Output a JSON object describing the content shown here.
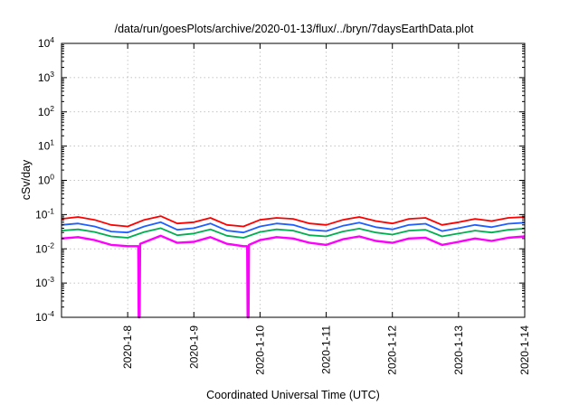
{
  "chart_data": {
    "type": "line",
    "title": "/data/run/goesPlots/archive/2020-01-13/flux/../bryn/7daysEarthData.plot",
    "xlabel": "Coordinated Universal Time (UTC)",
    "ylabel": "cSv/day",
    "x_range": [
      "2020-01-07T00:00",
      "2020-01-14T00:00"
    ],
    "x_ticks": [
      "2020-1-8",
      "2020-1-9",
      "2020-1-10",
      "2020-1-11",
      "2020-1-12",
      "2020-1-13",
      "2020-1-14"
    ],
    "y_scale": "log",
    "ylim": [
      0.0001,
      10000
    ],
    "y_ticks": [
      {
        "base": "10",
        "exp": "-4"
      },
      {
        "base": "10",
        "exp": "-3"
      },
      {
        "base": "10",
        "exp": "-2"
      },
      {
        "base": "10",
        "exp": "-1"
      },
      {
        "base": "10",
        "exp": "0"
      },
      {
        "base": "10",
        "exp": "1"
      },
      {
        "base": "10",
        "exp": "2"
      },
      {
        "base": "10",
        "exp": "3"
      },
      {
        "base": "10",
        "exp": "4"
      }
    ],
    "grid": true,
    "legend": "none",
    "series": [
      {
        "color": "#ff0000",
        "points": [
          [
            "2020-01-07T00:00",
            0.075
          ],
          [
            "2020-01-07T06:00",
            0.085
          ],
          [
            "2020-01-07T12:00",
            0.07
          ],
          [
            "2020-01-07T18:00",
            0.05
          ],
          [
            "2020-01-08T00:00",
            0.045
          ],
          [
            "2020-01-08T06:00",
            0.07
          ],
          [
            "2020-01-08T12:00",
            0.09
          ],
          [
            "2020-01-08T18:00",
            0.055
          ],
          [
            "2020-01-09T00:00",
            0.06
          ],
          [
            "2020-01-09T06:00",
            0.08
          ],
          [
            "2020-01-09T12:00",
            0.05
          ],
          [
            "2020-01-09T18:00",
            0.045
          ],
          [
            "2020-01-10T00:00",
            0.07
          ],
          [
            "2020-01-10T06:00",
            0.08
          ],
          [
            "2020-01-10T12:00",
            0.075
          ],
          [
            "2020-01-10T18:00",
            0.055
          ],
          [
            "2020-01-11T00:00",
            0.05
          ],
          [
            "2020-01-11T06:00",
            0.07
          ],
          [
            "2020-01-11T12:00",
            0.085
          ],
          [
            "2020-01-11T18:00",
            0.065
          ],
          [
            "2020-01-12T00:00",
            0.055
          ],
          [
            "2020-01-12T06:00",
            0.075
          ],
          [
            "2020-01-12T12:00",
            0.08
          ],
          [
            "2020-01-12T18:00",
            0.05
          ],
          [
            "2020-01-13T00:00",
            0.06
          ],
          [
            "2020-01-13T06:00",
            0.075
          ],
          [
            "2020-01-13T12:00",
            0.065
          ],
          [
            "2020-01-13T18:00",
            0.08
          ],
          [
            "2020-01-14T00:00",
            0.085
          ]
        ]
      },
      {
        "color": "#1f5fff",
        "points": [
          [
            "2020-01-07T00:00",
            0.05
          ],
          [
            "2020-01-07T06:00",
            0.055
          ],
          [
            "2020-01-07T12:00",
            0.045
          ],
          [
            "2020-01-07T18:00",
            0.032
          ],
          [
            "2020-01-08T00:00",
            0.03
          ],
          [
            "2020-01-08T06:00",
            0.045
          ],
          [
            "2020-01-08T12:00",
            0.06
          ],
          [
            "2020-01-08T18:00",
            0.036
          ],
          [
            "2020-01-09T00:00",
            0.04
          ],
          [
            "2020-01-09T06:00",
            0.055
          ],
          [
            "2020-01-09T12:00",
            0.034
          ],
          [
            "2020-01-09T18:00",
            0.03
          ],
          [
            "2020-01-10T00:00",
            0.045
          ],
          [
            "2020-01-10T06:00",
            0.055
          ],
          [
            "2020-01-10T12:00",
            0.05
          ],
          [
            "2020-01-10T18:00",
            0.036
          ],
          [
            "2020-01-11T00:00",
            0.033
          ],
          [
            "2020-01-11T06:00",
            0.047
          ],
          [
            "2020-01-11T12:00",
            0.058
          ],
          [
            "2020-01-11T18:00",
            0.043
          ],
          [
            "2020-01-12T00:00",
            0.037
          ],
          [
            "2020-01-12T06:00",
            0.05
          ],
          [
            "2020-01-12T12:00",
            0.054
          ],
          [
            "2020-01-12T18:00",
            0.033
          ],
          [
            "2020-01-13T00:00",
            0.04
          ],
          [
            "2020-01-13T06:00",
            0.05
          ],
          [
            "2020-01-13T12:00",
            0.043
          ],
          [
            "2020-01-13T18:00",
            0.054
          ],
          [
            "2020-01-14T00:00",
            0.058
          ]
        ]
      },
      {
        "color": "#00b050",
        "points": [
          [
            "2020-01-07T00:00",
            0.034
          ],
          [
            "2020-01-07T06:00",
            0.037
          ],
          [
            "2020-01-07T12:00",
            0.031
          ],
          [
            "2020-01-07T18:00",
            0.023
          ],
          [
            "2020-01-08T00:00",
            0.021
          ],
          [
            "2020-01-08T06:00",
            0.031
          ],
          [
            "2020-01-08T12:00",
            0.04
          ],
          [
            "2020-01-08T18:00",
            0.025
          ],
          [
            "2020-01-09T00:00",
            0.028
          ],
          [
            "2020-01-09T06:00",
            0.037
          ],
          [
            "2020-01-09T12:00",
            0.024
          ],
          [
            "2020-01-09T18:00",
            0.021
          ],
          [
            "2020-01-10T00:00",
            0.031
          ],
          [
            "2020-01-10T06:00",
            0.037
          ],
          [
            "2020-01-10T12:00",
            0.034
          ],
          [
            "2020-01-10T18:00",
            0.025
          ],
          [
            "2020-01-11T00:00",
            0.023
          ],
          [
            "2020-01-11T06:00",
            0.032
          ],
          [
            "2020-01-11T12:00",
            0.039
          ],
          [
            "2020-01-11T18:00",
            0.03
          ],
          [
            "2020-01-12T00:00",
            0.026
          ],
          [
            "2020-01-12T06:00",
            0.034
          ],
          [
            "2020-01-12T12:00",
            0.036
          ],
          [
            "2020-01-12T18:00",
            0.023
          ],
          [
            "2020-01-13T00:00",
            0.028
          ],
          [
            "2020-01-13T06:00",
            0.034
          ],
          [
            "2020-01-13T12:00",
            0.03
          ],
          [
            "2020-01-13T18:00",
            0.036
          ],
          [
            "2020-01-14T00:00",
            0.039
          ]
        ]
      },
      {
        "color": "#ff00ff",
        "points": [
          [
            "2020-01-07T00:00",
            0.02
          ],
          [
            "2020-01-07T06:00",
            0.022
          ],
          [
            "2020-01-07T12:00",
            0.018
          ],
          [
            "2020-01-07T18:00",
            0.013
          ],
          [
            "2020-01-08T00:00",
            0.012
          ],
          [
            "2020-01-08T03:50",
            0.012
          ],
          [
            "2020-01-08T04:00",
            0.0001
          ],
          [
            "2020-01-08T04:20",
            0.0001
          ],
          [
            "2020-01-08T04:30",
            0.014
          ],
          [
            "2020-01-08T12:00",
            0.024
          ],
          [
            "2020-01-08T18:00",
            0.015
          ],
          [
            "2020-01-09T00:00",
            0.016
          ],
          [
            "2020-01-09T06:00",
            0.022
          ],
          [
            "2020-01-09T12:00",
            0.014
          ],
          [
            "2020-01-09T18:00",
            0.012
          ],
          [
            "2020-01-09T19:20",
            0.012
          ],
          [
            "2020-01-09T19:30",
            0.0001
          ],
          [
            "2020-01-09T19:50",
            0.0001
          ],
          [
            "2020-01-09T20:00",
            0.013
          ],
          [
            "2020-01-10T00:00",
            0.018
          ],
          [
            "2020-01-10T06:00",
            0.022
          ],
          [
            "2020-01-10T12:00",
            0.02
          ],
          [
            "2020-01-10T18:00",
            0.015
          ],
          [
            "2020-01-11T00:00",
            0.013
          ],
          [
            "2020-01-11T06:00",
            0.019
          ],
          [
            "2020-01-11T12:00",
            0.023
          ],
          [
            "2020-01-11T18:00",
            0.017
          ],
          [
            "2020-01-12T00:00",
            0.015
          ],
          [
            "2020-01-12T06:00",
            0.02
          ],
          [
            "2020-01-12T12:00",
            0.021
          ],
          [
            "2020-01-12T18:00",
            0.013
          ],
          [
            "2020-01-13T00:00",
            0.016
          ],
          [
            "2020-01-13T06:00",
            0.02
          ],
          [
            "2020-01-13T12:00",
            0.017
          ],
          [
            "2020-01-13T18:00",
            0.021
          ],
          [
            "2020-01-14T00:00",
            0.023
          ]
        ]
      }
    ]
  }
}
